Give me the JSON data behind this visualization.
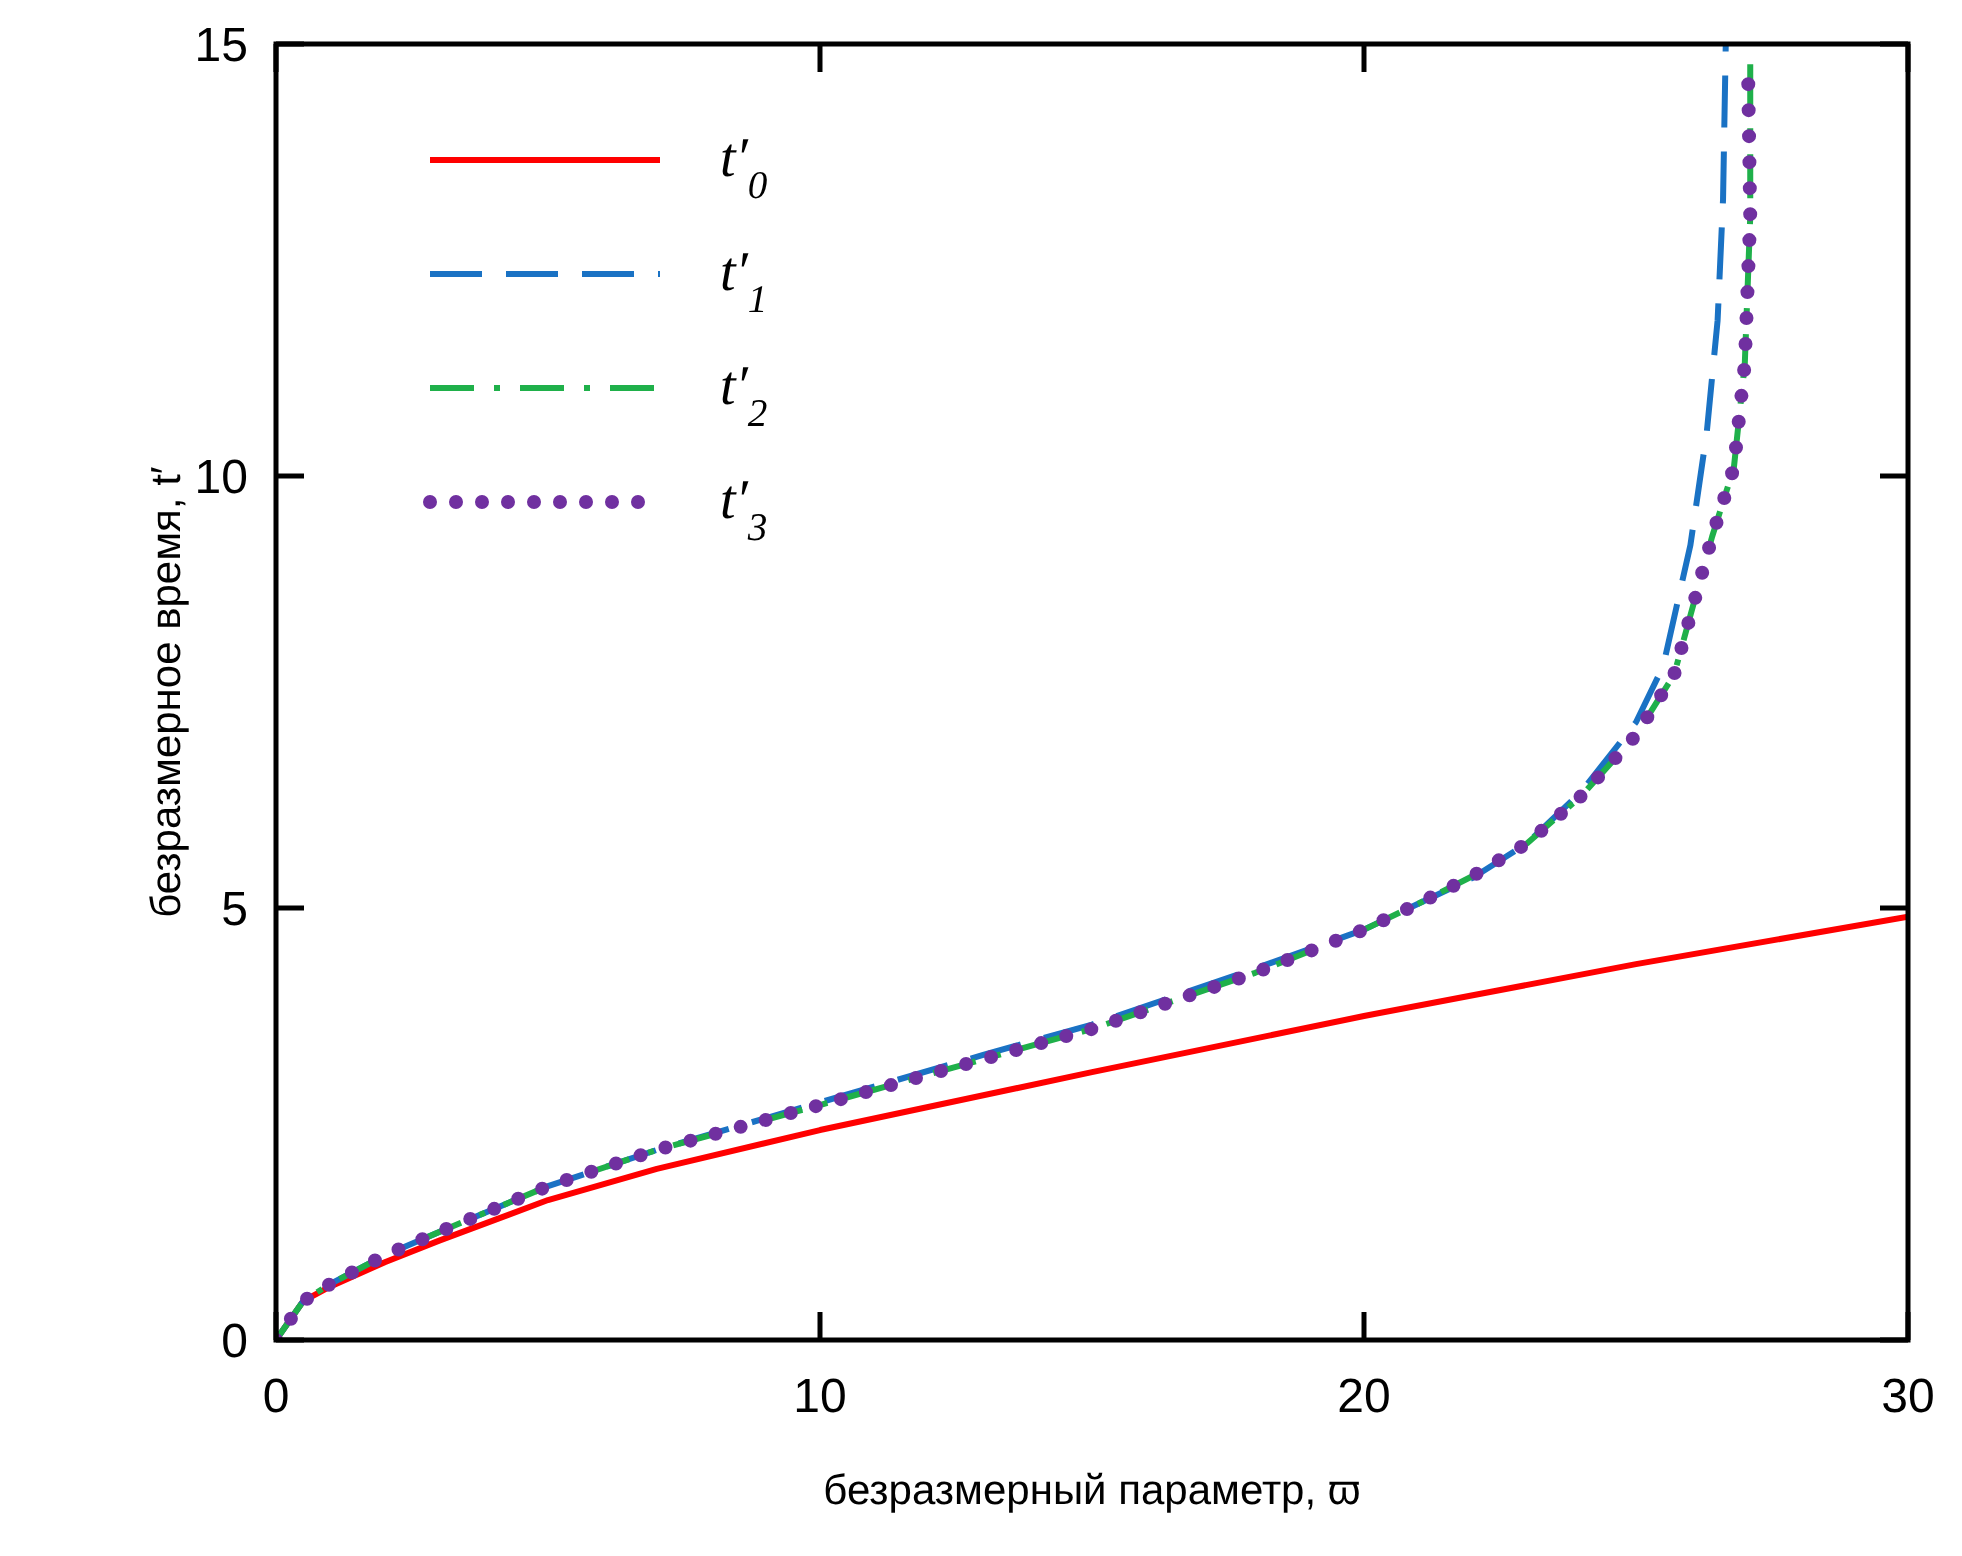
{
  "chart_data": {
    "type": "line",
    "xlabel": "безразмерный параметр, ϖ",
    "ylabel": "безразмерное время, t′",
    "xlim": [
      0,
      30
    ],
    "xticks": [
      0,
      10,
      20,
      30
    ],
    "ylim": [
      0,
      15
    ],
    "yticks": [
      0,
      5,
      10,
      15
    ],
    "grid": false,
    "legend": "top left",
    "series": [
      {
        "name": "t′$_{0}$",
        "color": "#ff0000",
        "line_style": "solid",
        "x": [
          0,
          0.5,
          1,
          2,
          3,
          5,
          7,
          10,
          15,
          20,
          25,
          30
        ],
        "values": [
          0,
          0.45,
          0.62,
          0.9,
          1.15,
          1.62,
          1.98,
          2.43,
          3.1,
          3.75,
          4.35,
          4.9
        ]
      },
      {
        "name": "t′$_{1}$",
        "color": "#1a72c4",
        "line_style": "dashed",
        "x": [
          0,
          0.5,
          1,
          2,
          3,
          5,
          7,
          10,
          13,
          15,
          18,
          20,
          22,
          23,
          24,
          25,
          25.5,
          26,
          26.3,
          26.5,
          26.6,
          26.65
        ],
        "values": [
          0,
          0.45,
          0.65,
          0.98,
          1.25,
          1.78,
          2.2,
          2.75,
          3.3,
          3.65,
          4.3,
          4.75,
          5.35,
          5.75,
          6.35,
          7.15,
          7.8,
          9.2,
          10.5,
          11.8,
          13.2,
          15
        ]
      },
      {
        "name": "t′$_{2}$",
        "color": "#1fb04a",
        "line_style": "dashdot",
        "x": [
          0,
          0.5,
          1,
          2,
          3,
          5,
          7,
          10,
          13,
          15,
          18,
          20,
          21,
          22,
          23,
          24,
          25,
          25.7,
          26.4,
          26.8,
          27,
          27.1,
          27.1
        ],
        "values": [
          0,
          0.45,
          0.65,
          0.98,
          1.25,
          1.78,
          2.2,
          2.72,
          3.25,
          3.6,
          4.25,
          4.75,
          5.05,
          5.37,
          5.75,
          6.3,
          7,
          7.7,
          9.3,
          10.1,
          11.3,
          13,
          15
        ]
      },
      {
        "name": "t′$_{3}$",
        "color": "#7030a0",
        "line_style": "dotted",
        "x": [
          0,
          0.5,
          1,
          2,
          3,
          5,
          7,
          10,
          13,
          15,
          18,
          20,
          21,
          22,
          23,
          24,
          25,
          25.7,
          26.4,
          26.8,
          27,
          27.1,
          27.06
        ],
        "values": [
          0,
          0.45,
          0.65,
          0.98,
          1.25,
          1.78,
          2.2,
          2.72,
          3.25,
          3.6,
          4.25,
          4.75,
          5.05,
          5.37,
          5.75,
          6.3,
          7,
          7.7,
          9.3,
          10.1,
          11.3,
          13,
          14.7
        ]
      }
    ]
  }
}
